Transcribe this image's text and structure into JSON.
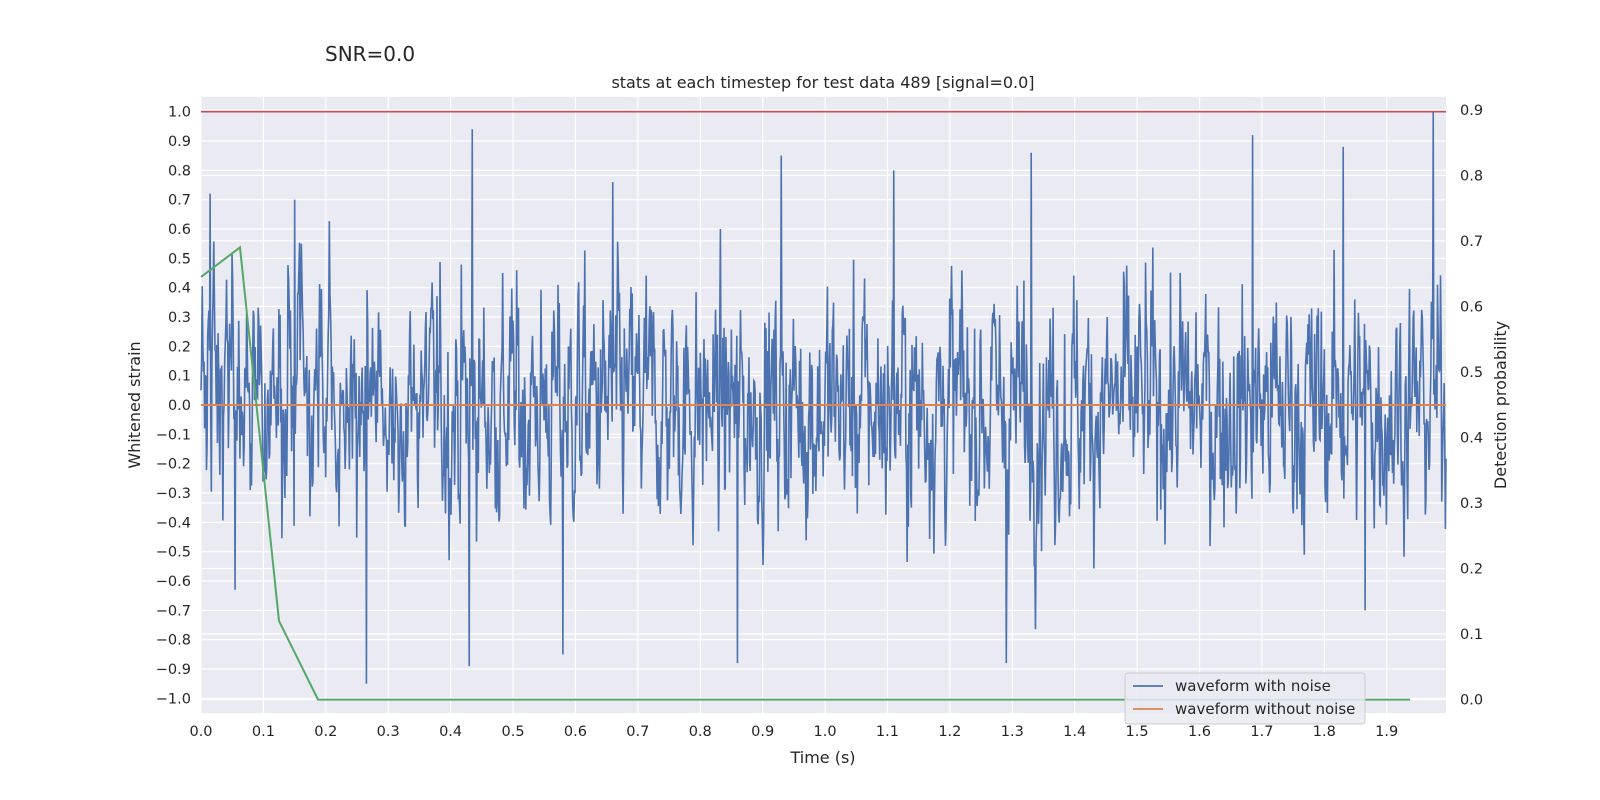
{
  "header": {
    "snr_label": "SNR=0.0"
  },
  "chart_data": {
    "type": "line",
    "title": "stats at each timestep for test data 489 [signal=0.0]",
    "xlabel": "Time (s)",
    "ylabel": "Whitened strain",
    "y2label": "Detection probability",
    "xlim": [
      0.0,
      1.995
    ],
    "ylim": [
      -1.05,
      1.05
    ],
    "y2lim": [
      -0.0205,
      0.9195
    ],
    "x_ticks": [
      "0.0",
      "0.1",
      "0.2",
      "0.3",
      "0.4",
      "0.5",
      "0.6",
      "0.7",
      "0.8",
      "0.9",
      "1.0",
      "1.1",
      "1.2",
      "1.3",
      "1.4",
      "1.5",
      "1.6",
      "1.7",
      "1.8",
      "1.9"
    ],
    "y_ticks": [
      "1.0",
      "0.9",
      "0.8",
      "0.7",
      "0.6",
      "0.5",
      "0.4",
      "0.3",
      "0.2",
      "0.1",
      "0.0",
      "−0.1",
      "−0.2",
      "−0.3",
      "−0.4",
      "−0.5",
      "−0.6",
      "−0.7",
      "−0.8",
      "−0.9",
      "−1.0"
    ],
    "y2_ticks": [
      "0.9",
      "0.8",
      "0.7",
      "0.6",
      "0.5",
      "0.4",
      "0.3",
      "0.2",
      "0.1",
      "0.0"
    ],
    "threshold": {
      "value": 1.0,
      "color": "#c44e52"
    },
    "series": [
      {
        "name": "waveform with noise",
        "color": "#4c72b0",
        "axis": "left",
        "samples": 2048,
        "peaks": [
          {
            "x": 0.015,
            "y": 0.72
          },
          {
            "x": 0.055,
            "y": -0.63
          },
          {
            "x": 0.15,
            "y": 0.7
          },
          {
            "x": 0.265,
            "y": -0.95
          },
          {
            "x": 0.435,
            "y": 0.94
          },
          {
            "x": 0.43,
            "y": -0.89
          },
          {
            "x": 0.58,
            "y": -0.85
          },
          {
            "x": 0.66,
            "y": 0.76
          },
          {
            "x": 0.86,
            "y": -0.88
          },
          {
            "x": 0.93,
            "y": 0.85
          },
          {
            "x": 1.11,
            "y": 0.8
          },
          {
            "x": 1.29,
            "y": -0.88
          },
          {
            "x": 1.33,
            "y": 0.86
          },
          {
            "x": 1.685,
            "y": 0.92
          },
          {
            "x": 1.83,
            "y": 0.88
          },
          {
            "x": 1.865,
            "y": -0.7
          },
          {
            "x": 1.975,
            "y": 1.0
          }
        ]
      },
      {
        "name": "waveform without noise",
        "color": "#dd8452",
        "axis": "left",
        "x": [
          0.0,
          1.995
        ],
        "y": [
          0.0,
          0.0
        ]
      },
      {
        "name": "detection probability",
        "color": "#55a868",
        "axis": "right",
        "x": [
          0.0,
          0.0625,
          0.125,
          0.1875,
          0.25,
          1.9375
        ],
        "y": [
          0.645,
          0.69,
          0.12,
          0.0,
          0.0,
          0.0
        ]
      }
    ],
    "legend": {
      "position": "lower-right",
      "entries": [
        "waveform with noise",
        "waveform without noise"
      ]
    }
  }
}
